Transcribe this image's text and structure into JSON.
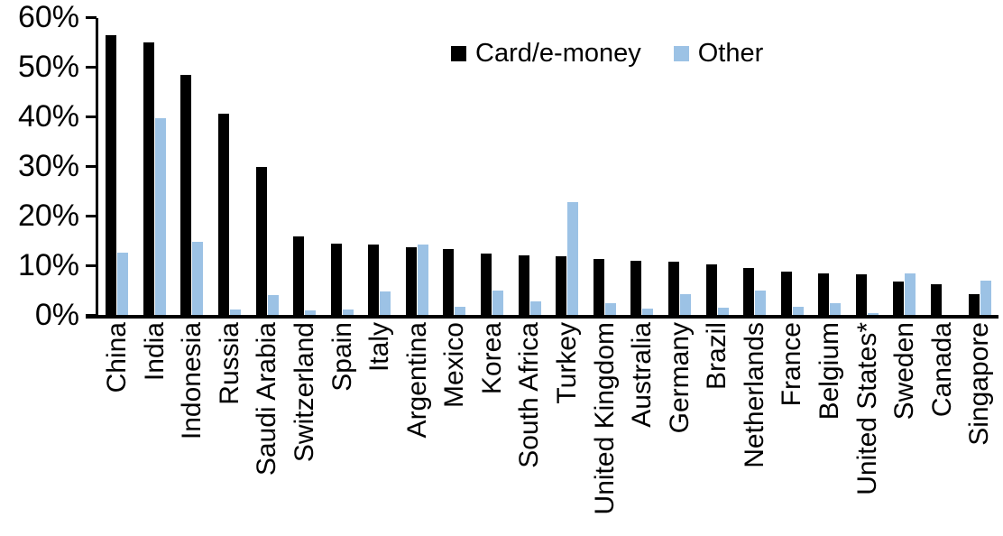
{
  "chart_data": {
    "type": "bar",
    "title": "",
    "xlabel": "",
    "ylabel": "",
    "ylim": [
      0,
      60
    ],
    "ytick_values": [
      0,
      10,
      20,
      30,
      40,
      50,
      60
    ],
    "ytick_labels": [
      "0%",
      "10%",
      "20%",
      "30%",
      "40%",
      "50%",
      "60%"
    ],
    "grid": false,
    "legend_position": "top-center",
    "categories": [
      "China",
      "India",
      "Indonesia",
      "Russia",
      "Saudi Arabia",
      "Switzerland",
      "Spain",
      "Italy",
      "Argentina",
      "Mexico",
      "Korea",
      "South Africa",
      "Turkey",
      "United Kingdom",
      "Australia",
      "Germany",
      "Brazil",
      "Netherlands",
      "France",
      "Belgium",
      "United States*",
      "Sweden",
      "Canada",
      "Singapore"
    ],
    "series": [
      {
        "name": "Card/e-money",
        "color": "#000000",
        "values": [
          56.3,
          55.0,
          48.4,
          40.6,
          29.9,
          15.8,
          14.4,
          14.2,
          13.6,
          13.2,
          12.4,
          12.0,
          11.8,
          11.2,
          11.0,
          10.7,
          10.2,
          9.5,
          8.8,
          8.3,
          8.1,
          6.7,
          6.2,
          4.2
        ]
      },
      {
        "name": "Other",
        "color": "#9CC2E5",
        "values": [
          12.5,
          39.7,
          14.8,
          1.1,
          4.1,
          1.0,
          1.1,
          4.8,
          14.1,
          1.7,
          4.9,
          2.8,
          22.7,
          2.4,
          1.2,
          4.2,
          1.4,
          5.0,
          1.7,
          2.3,
          0.4,
          8.3,
          0.0,
          6.9
        ]
      }
    ]
  }
}
